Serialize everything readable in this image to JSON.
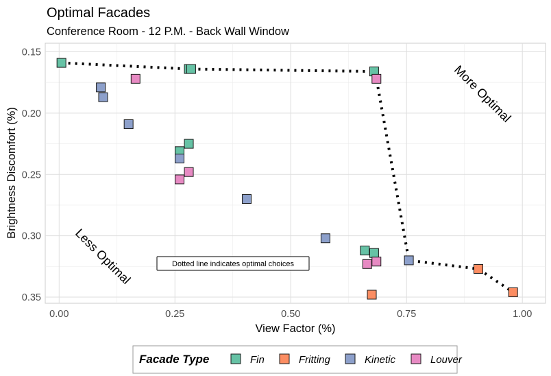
{
  "chart_data": {
    "type": "scatter",
    "title": "Optimal Facades",
    "subtitle": "Conference Room - 12 P.M. - Back Wall Window",
    "xlabel": "View Factor (%)",
    "ylabel": "Brightness Discomfort (%)",
    "xlim": [
      -0.03,
      1.05
    ],
    "ylim": [
      0.355,
      0.143
    ],
    "y_reversed": true,
    "x_ticks": [
      "0.00",
      "0.25",
      "0.50",
      "0.75",
      "1.00"
    ],
    "x_tick_values": [
      0,
      0.25,
      0.5,
      0.75,
      1.0
    ],
    "y_ticks": [
      "0.15",
      "0.20",
      "0.25",
      "0.30",
      "0.35"
    ],
    "y_tick_values": [
      0.15,
      0.2,
      0.25,
      0.3,
      0.35
    ],
    "grid": true,
    "legend_title": "Facade Type",
    "legend_position": "bottom",
    "series": [
      {
        "name": "Fin",
        "color": "#66c2a5",
        "x": [
          0.005,
          0.28,
          0.285,
          0.26,
          0.28,
          0.66,
          0.68,
          0.68
        ],
        "y": [
          0.159,
          0.164,
          0.164,
          0.231,
          0.225,
          0.312,
          0.314,
          0.166
        ]
      },
      {
        "name": "Fritting",
        "color": "#fc8d62",
        "x": [
          0.675,
          0.905,
          0.98
        ],
        "y": [
          0.348,
          0.327,
          0.346
        ]
      },
      {
        "name": "Kinetic",
        "color": "#8da0cb",
        "x": [
          0.09,
          0.095,
          0.15,
          0.26,
          0.405,
          0.575,
          0.755
        ],
        "y": [
          0.179,
          0.187,
          0.209,
          0.237,
          0.27,
          0.302,
          0.32
        ]
      },
      {
        "name": "Louver",
        "color": "#e78ac3",
        "x": [
          0.165,
          0.28,
          0.26,
          0.665,
          0.685,
          0.685
        ],
        "y": [
          0.172,
          0.248,
          0.254,
          0.323,
          0.321,
          0.172
        ]
      }
    ],
    "optimal_line": {
      "style": "dotted",
      "x": [
        0.005,
        0.28,
        0.68,
        0.685,
        0.755,
        0.905,
        0.98
      ],
      "y": [
        0.159,
        0.164,
        0.166,
        0.172,
        0.32,
        0.327,
        0.346
      ]
    },
    "annotations": {
      "more_optimal": "More Optimal",
      "less_optimal": "Less Optimal",
      "note": "Dotted line indicates optimal choices"
    }
  }
}
